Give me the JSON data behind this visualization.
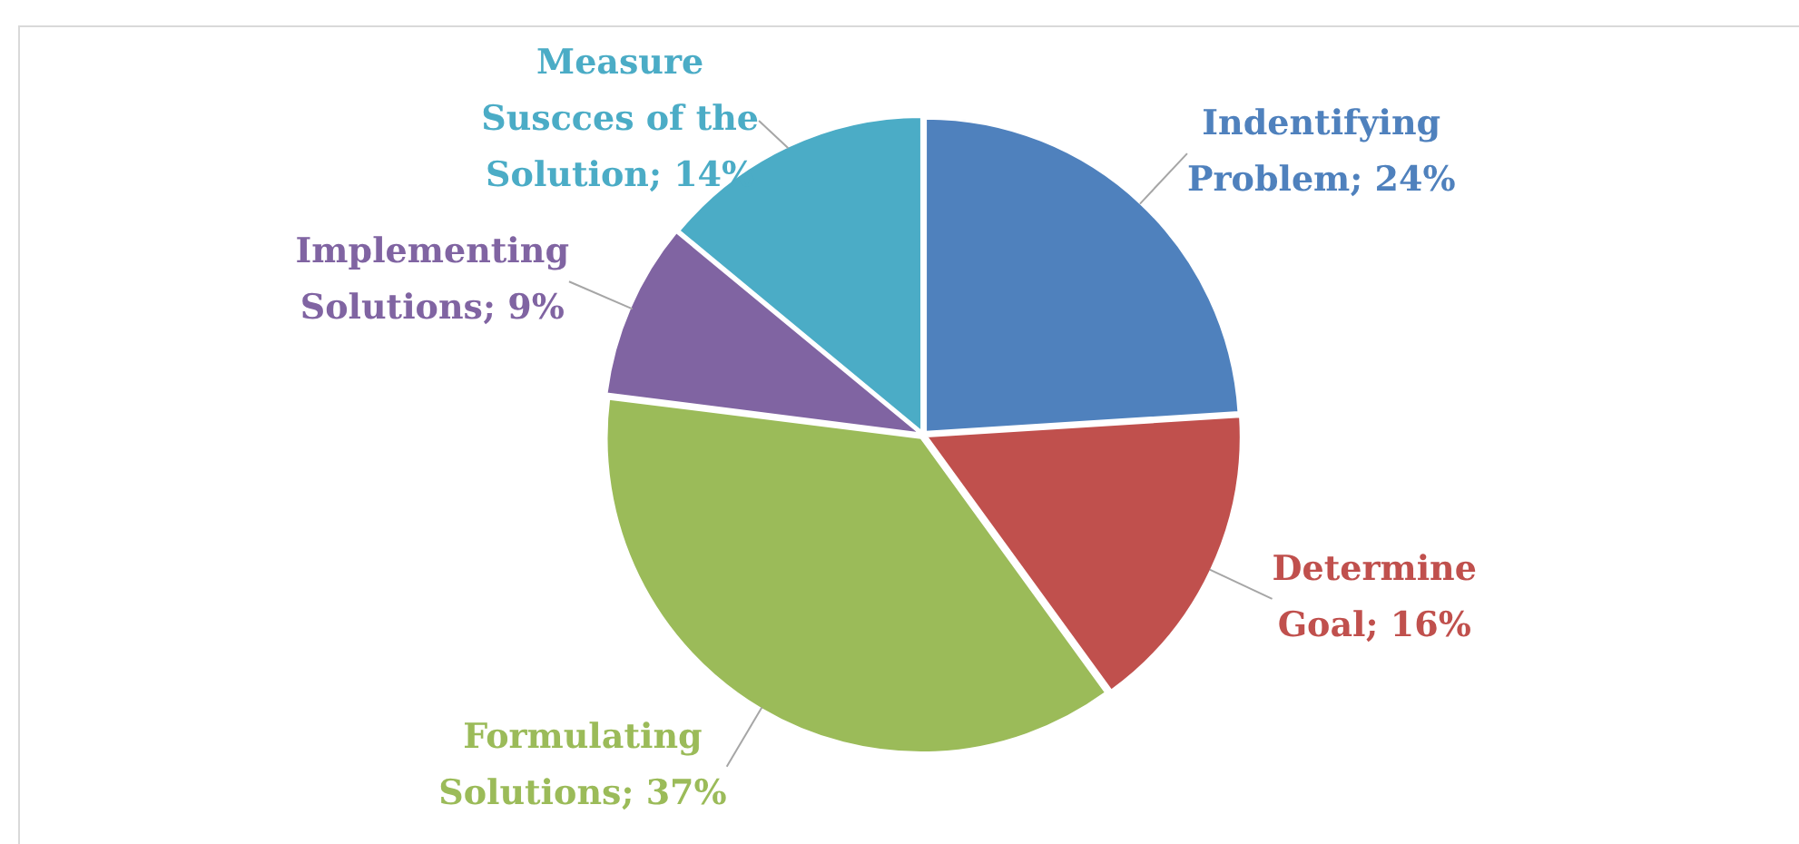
{
  "chart_data": {
    "type": "pie",
    "categories": [
      "Indentifying Problem",
      "Determine Goal",
      "Formulating Solutions",
      "Implementing Solutions",
      "Measure Suscces of the Solution"
    ],
    "values": [
      24,
      16,
      37,
      9,
      14
    ],
    "value_labels": [
      "24%",
      "16%",
      "37%",
      "9%",
      "14%"
    ],
    "colors": [
      "#4f81bd",
      "#c0504d",
      "#9bbb59",
      "#8064a2",
      "#4bacc6"
    ],
    "legend": false
  }
}
